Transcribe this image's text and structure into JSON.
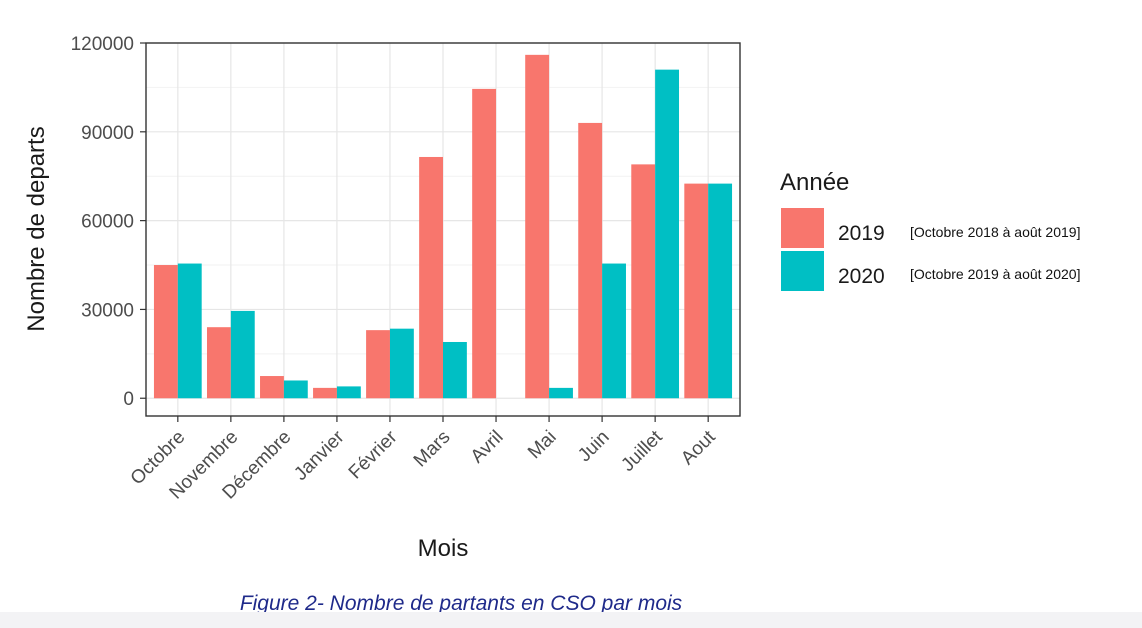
{
  "chart_data": {
    "type": "bar",
    "categories": [
      "Octobre",
      "Novembre",
      "Décembre",
      "Janvier",
      "Février",
      "Mars",
      "Avril",
      "Mai",
      "Juin",
      "Juillet",
      "Aout"
    ],
    "series": [
      {
        "name": "2019",
        "values": [
          45000,
          24000,
          7500,
          3500,
          23000,
          81500,
          104500,
          116000,
          93000,
          79000,
          72500
        ]
      },
      {
        "name": "2020",
        "values": [
          45500,
          29500,
          6000,
          4000,
          23500,
          19000,
          0,
          3500,
          45500,
          111000,
          72500
        ]
      }
    ],
    "xlabel": "Mois",
    "ylabel": "Nombre de departs",
    "ylim": [
      -6000,
      120000
    ],
    "yticks": [
      0,
      30000,
      60000,
      90000,
      120000
    ],
    "ytick_labels": [
      "0",
      "30000",
      "60000",
      "90000",
      "120000"
    ],
    "grid": true,
    "legend": {
      "title": "Année",
      "position": "right",
      "notes": [
        "[Octobre 2018 à août 2019]",
        "[Octobre 2019 à août 2020]"
      ]
    },
    "colors": [
      "#F8766D",
      "#00BFC4"
    ],
    "caption": "Figure 2- Nombre de partants en CSO par mois"
  }
}
